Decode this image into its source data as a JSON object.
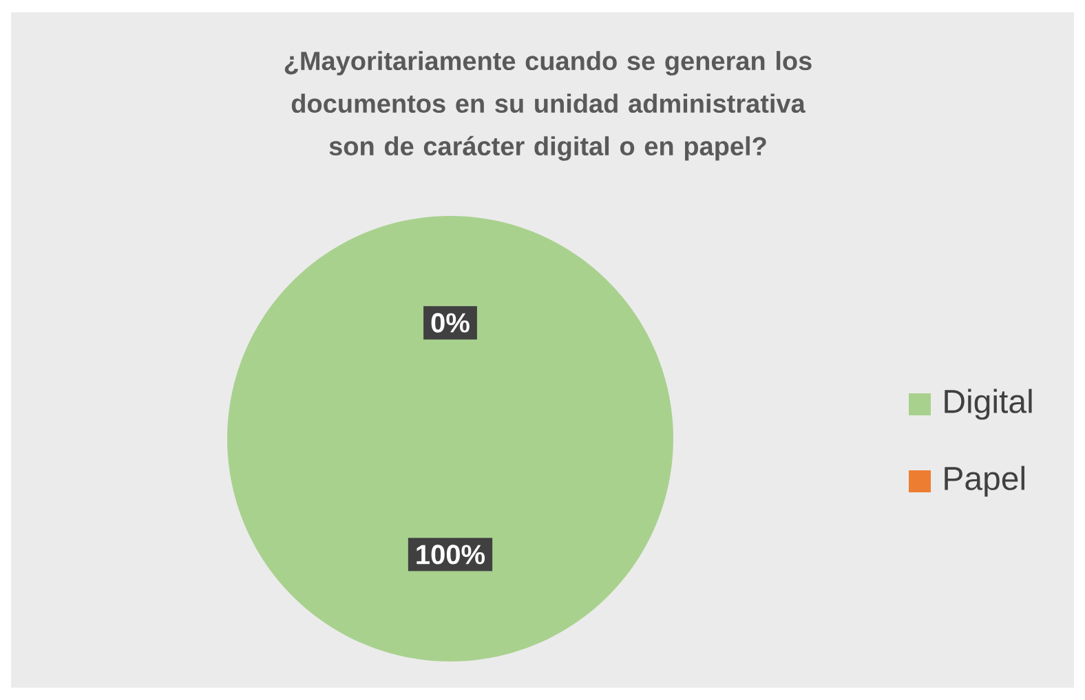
{
  "chart_data": {
    "type": "pie",
    "title": "¿Mayoritariamente cuando se generan los documentos en su unidad administrativa son de carácter digital o en papel?",
    "categories": [
      "Digital",
      "Papel"
    ],
    "values": [
      100,
      0
    ],
    "value_labels": [
      "100%",
      "0%"
    ],
    "colors": [
      "#a9d18e",
      "#ed7d31"
    ],
    "legend": "right"
  }
}
